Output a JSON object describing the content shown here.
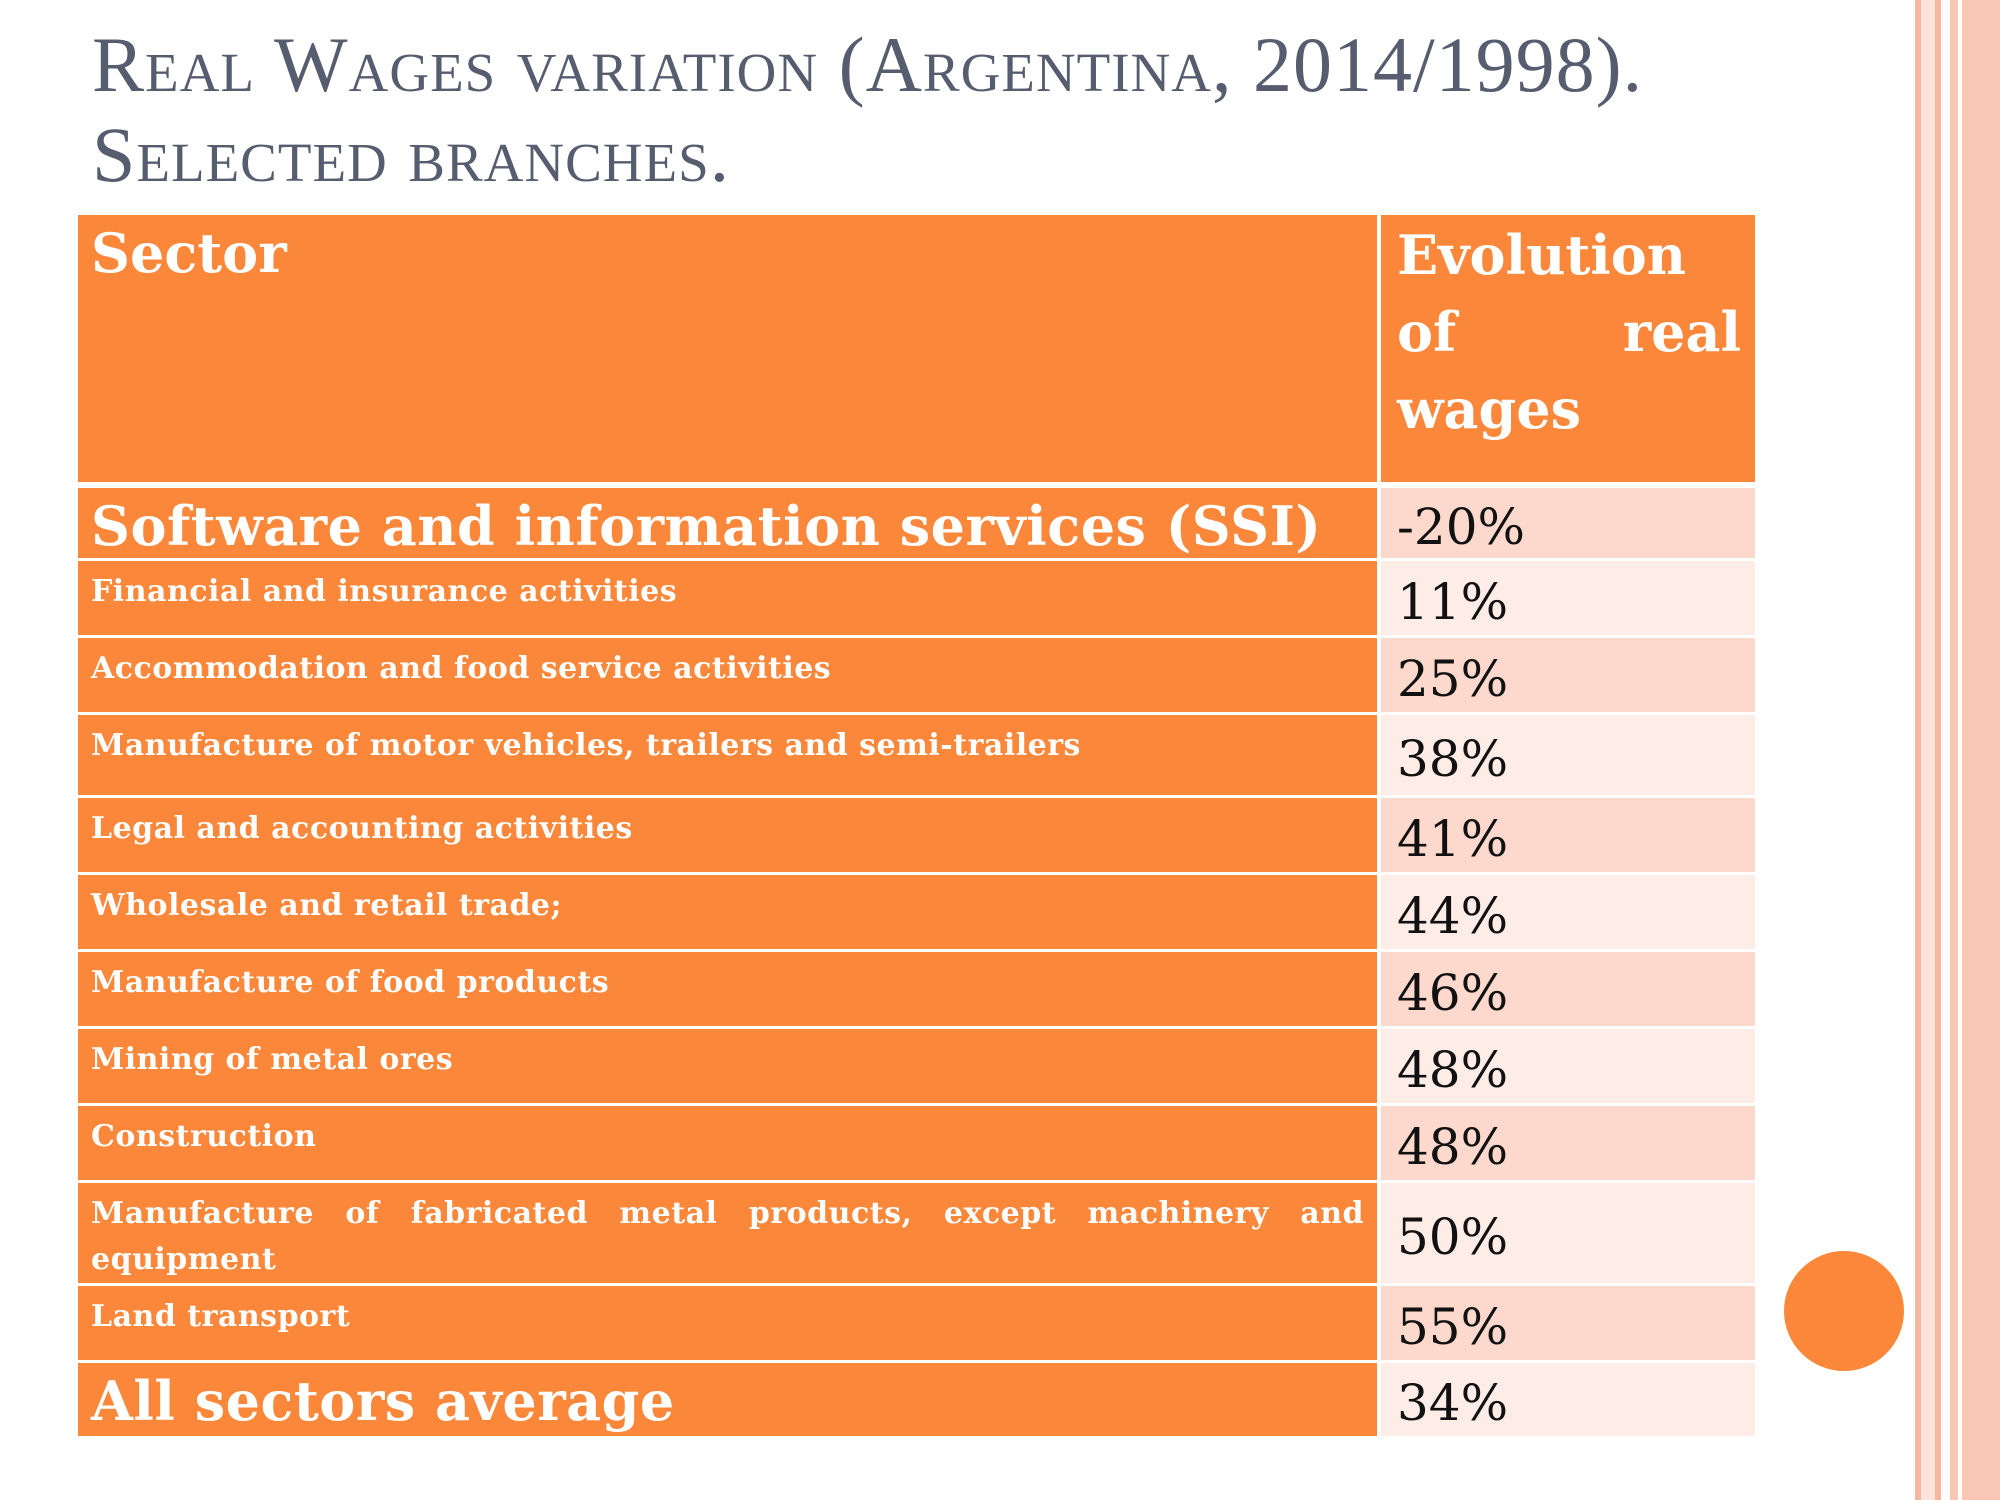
{
  "title": {
    "line1": "Real Wages variation (Argentina, 2014/1998).",
    "line2": "Selected branches."
  },
  "table": {
    "header": {
      "sector": "Sector",
      "value": "Evolution of real wages"
    },
    "rows": [
      {
        "sector": "Software and information services (SSI)",
        "value": "-20%"
      },
      {
        "sector": "Financial and insurance activities",
        "value": "11%"
      },
      {
        "sector": "Accommodation and food service activities",
        "value": "25%"
      },
      {
        "sector": "Manufacture of motor vehicles, trailers and semi-trailers",
        "value": "38%"
      },
      {
        "sector": "Legal and accounting activities",
        "value": "41%"
      },
      {
        "sector": "Wholesale and retail trade;",
        "value": "44%"
      },
      {
        "sector": "Manufacture of food products",
        "value": "46%"
      },
      {
        "sector": "Mining of metal ores",
        "value": "48%"
      },
      {
        "sector": "Construction",
        "value": "48%"
      },
      {
        "sector": "Manufacture of fabricated metal products, except machinery and equipment",
        "value": "50%"
      },
      {
        "sector": "Land transport",
        "value": "55%"
      },
      {
        "sector": "All sectors average",
        "value": "34%"
      }
    ]
  },
  "colors": {
    "accent": "#fb873a",
    "row_light": "#feece7",
    "row_pink": "#fdd8cc",
    "title": "#555d6e"
  }
}
